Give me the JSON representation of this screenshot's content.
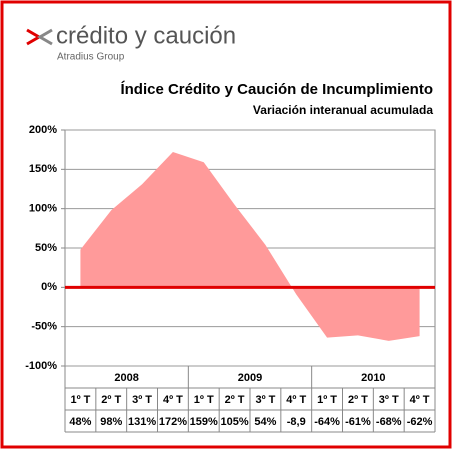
{
  "logo": {
    "name": "crédito y caución",
    "group": "Atradius Group"
  },
  "chart_data": {
    "type": "area",
    "title": "Índice Crédito y Caución de Incumplimiento",
    "subtitle": "Variación interanual acumulada",
    "groups": [
      "2008",
      "2009",
      "2010"
    ],
    "categories": [
      "1º T",
      "2º T",
      "3º T",
      "4º T",
      "1º T",
      "2º T",
      "3º T",
      "4º T",
      "1º T",
      "2º T",
      "3º T",
      "4º T"
    ],
    "values": [
      48,
      98,
      131,
      172,
      159,
      105,
      54,
      -8.9,
      -64,
      -61,
      -68,
      -62
    ],
    "value_labels": [
      "48%",
      "98%",
      "131%",
      "172%",
      "159%",
      "105%",
      "54%",
      "-8,9",
      "-64%",
      "-61%",
      "-68%",
      "-62%"
    ],
    "color": "#ff9a9a",
    "zero_line_color": "#e00000",
    "ylim": [
      -100,
      200
    ],
    "yticks": [
      {
        "value": -100,
        "label": "-100%"
      },
      {
        "value": -50,
        "label": "-50%"
      },
      {
        "value": 0,
        "label": "0%"
      },
      {
        "value": 50,
        "label": "50%"
      },
      {
        "value": 100,
        "label": "100%"
      },
      {
        "value": 150,
        "label": "150%"
      },
      {
        "value": 200,
        "label": "200%"
      }
    ],
    "grid": true
  }
}
